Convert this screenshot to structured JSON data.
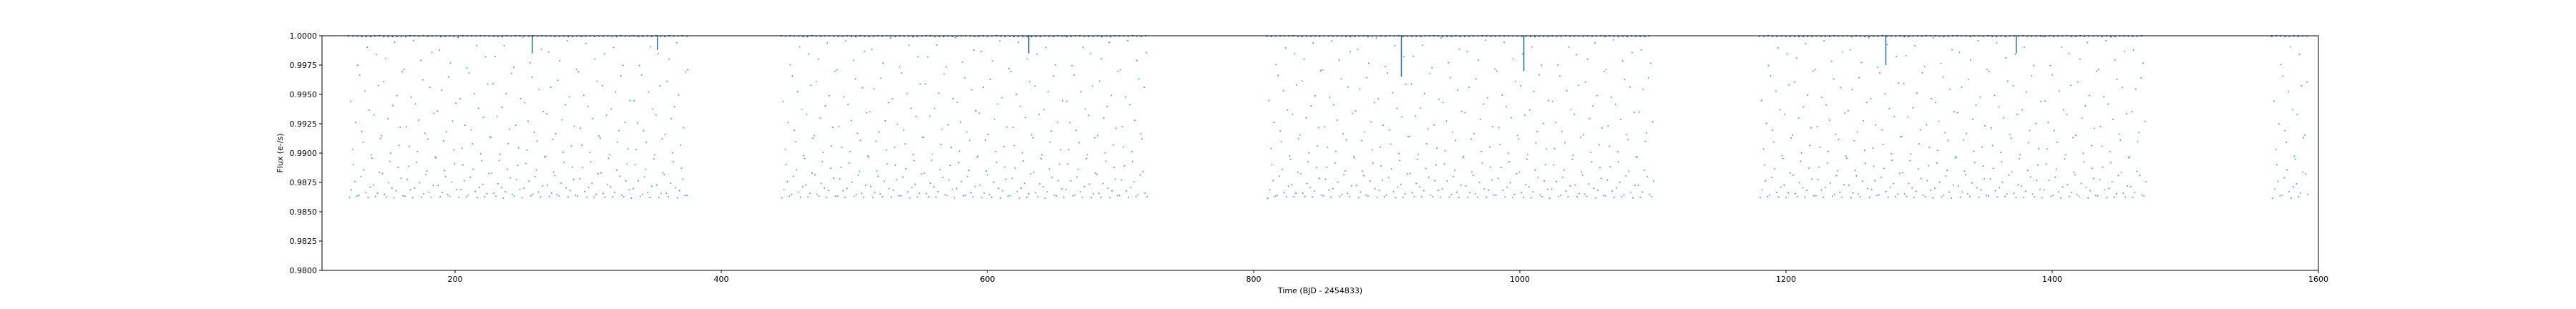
{
  "chart_data": {
    "type": "scatter",
    "title": "",
    "xlabel": "Time (BJD - 2454833)",
    "ylabel": "Flux (e-/s)",
    "xlim": [
      100,
      1600
    ],
    "ylim": [
      0.98,
      1.0
    ],
    "xticks": [
      200,
      400,
      600,
      800,
      1000,
      1200,
      1400,
      1600
    ],
    "yticks": [
      0.98,
      0.9825,
      0.985,
      0.9875,
      0.99,
      0.9925,
      0.995,
      0.9975,
      1.0
    ],
    "ytick_labels": [
      "0.9800",
      "0.9825",
      "0.9850",
      "0.9875",
      "0.9900",
      "0.9925",
      "0.9950",
      "0.9975",
      "1.0000"
    ],
    "grid": false,
    "series": [
      {
        "name": "",
        "color": "#1f77b4",
        "segments": [
          {
            "start": 120,
            "end": 375
          },
          {
            "start": 445,
            "end": 720
          },
          {
            "start": 810,
            "end": 1100
          },
          {
            "start": 1180,
            "end": 1470
          },
          {
            "start": 1565,
            "end": 1592
          }
        ],
        "curve_period_days": 13.7,
        "base_flux_min": 0.9862,
        "base_flux_max": 1.0,
        "dips": [
          {
            "x": 258,
            "depth": 0.9985
          },
          {
            "x": 352,
            "depth": 0.9988
          },
          {
            "x": 631,
            "depth": 0.9985
          },
          {
            "x": 911,
            "depth": 0.9965
          },
          {
            "x": 1003,
            "depth": 0.997
          },
          {
            "x": 1275,
            "depth": 0.9975
          },
          {
            "x": 1373,
            "depth": 0.9985
          }
        ]
      }
    ]
  }
}
